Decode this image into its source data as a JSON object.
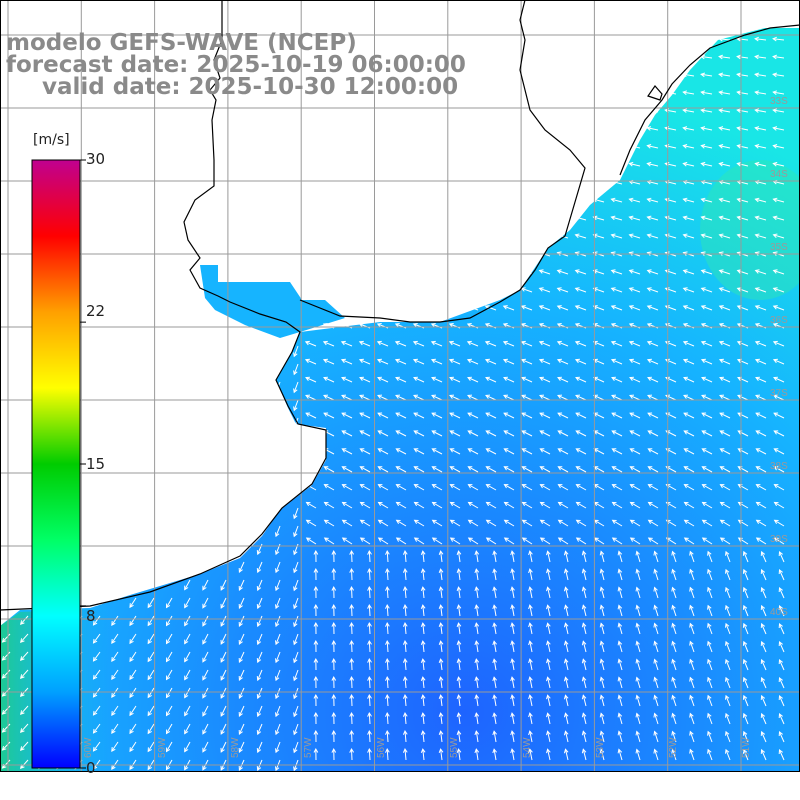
{
  "title": {
    "model": "modelo GEFS-WAVE (NCEP)",
    "forecast": "forecast date: 2025-10-19 06:00:00",
    "valid": "valid date: 2025-10-30 12:00:00"
  },
  "colorbar": {
    "unit": "[m/s]",
    "ticks": [
      "30",
      "22",
      "15",
      "8",
      "0"
    ],
    "tick_values": [
      30,
      22,
      15,
      8,
      0
    ],
    "range": [
      0,
      30
    ],
    "colors": [
      "#0000ff",
      "#00a0ff",
      "#00ffff",
      "#00ff66",
      "#00cc00",
      "#ffff00",
      "#ffa000",
      "#ff0000",
      "#c00090"
    ]
  },
  "map": {
    "ocean_color_low": "#1e64ff",
    "ocean_color_mid": "#16b4ff",
    "ocean_color_high": "#19e6e6",
    "land_color": "#ffffff",
    "grid_color": "#9a9a9a",
    "coast_color": "#000000",
    "arrow_color": "#ffffff",
    "lon_labels": [
      "60W",
      "59W",
      "58W",
      "57W",
      "56W",
      "55W",
      "54W",
      "53W",
      "52W",
      "51W"
    ],
    "lat_labels": [
      "33S",
      "34S",
      "35S",
      "36S",
      "37S",
      "38S",
      "39S",
      "40S"
    ]
  }
}
